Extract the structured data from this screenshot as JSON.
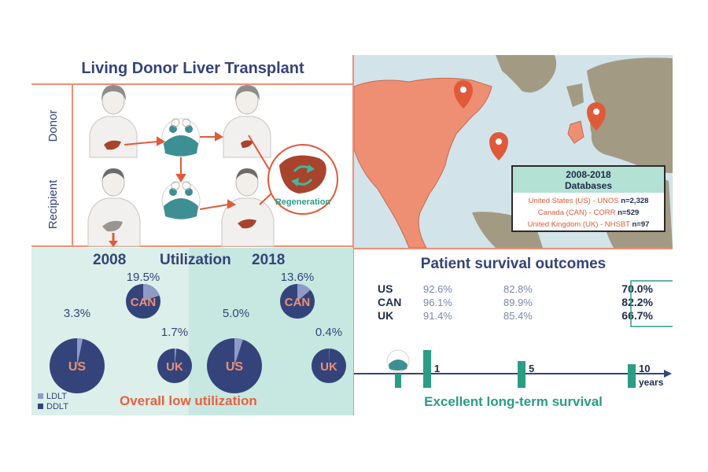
{
  "ldlt_panel": {
    "title": "Living Donor Liver Transplant",
    "row_labels": {
      "donor": "Donor",
      "recipient": "Recipient"
    },
    "regeneration_label": "Regeneration"
  },
  "map_panel": {
    "box_title": "2008-2018",
    "box_subtitle": "Databases",
    "databases": [
      {
        "label": "United States (US) - UNOS",
        "n": "n=2,328"
      },
      {
        "label": "Canada (CAN) - CORR",
        "n": "n=529"
      },
      {
        "label": "United Kingdom (UK) - NHSBT",
        "n": "n=97"
      }
    ]
  },
  "utilization_panel": {
    "title": "Utilization",
    "footer": "Overall low utilization",
    "legend": [
      {
        "label": "LDLT",
        "color": "#8f9bc6"
      },
      {
        "label": "DDLT",
        "color": "#34447a"
      }
    ]
  },
  "survival_panel": {
    "title": "Patient survival outcomes",
    "footer": "Excellent long-term survival",
    "x_unit": "years",
    "countries": [
      "US",
      "CAN",
      "UK"
    ]
  },
  "chart_data": [
    {
      "type": "pie",
      "year_label": "2008",
      "slices": [
        {
          "country": "US",
          "ldlt_label": "3.3%",
          "ldlt_value": 3.3
        },
        {
          "country": "CAN",
          "ldlt_label": "19.5%",
          "ldlt_value": 19.5
        },
        {
          "country": "UK",
          "ldlt_label": "1.7%",
          "ldlt_value": 1.7
        }
      ]
    },
    {
      "type": "pie",
      "year_label": "2018",
      "slices": [
        {
          "country": "US",
          "ldlt_label": "5.0%",
          "ldlt_value": 5.0
        },
        {
          "country": "CAN",
          "ldlt_label": "13.6%",
          "ldlt_value": 13.6
        },
        {
          "country": "UK",
          "ldlt_label": "0.4%",
          "ldlt_value": 0.4
        }
      ]
    },
    {
      "type": "table",
      "x": [
        "1",
        "5",
        "10"
      ],
      "series": [
        {
          "name": "US",
          "values": [
            "92.6%",
            "82.8%",
            "70.0%"
          ]
        },
        {
          "name": "CAN",
          "values": [
            "96.1%",
            "89.9%",
            "82.2%"
          ]
        },
        {
          "name": "UK",
          "values": [
            "91.4%",
            "85.4%",
            "66.7%"
          ]
        }
      ]
    }
  ],
  "colors": {
    "navy": "#34447a",
    "salmon": "#ee8f73",
    "orange_text": "#e8603f",
    "teal": "#2a9d84",
    "panel_mint": "#dcefea",
    "ocean": "#d3e3ea",
    "land": "#a39a84",
    "pin": "#e05a3a"
  }
}
